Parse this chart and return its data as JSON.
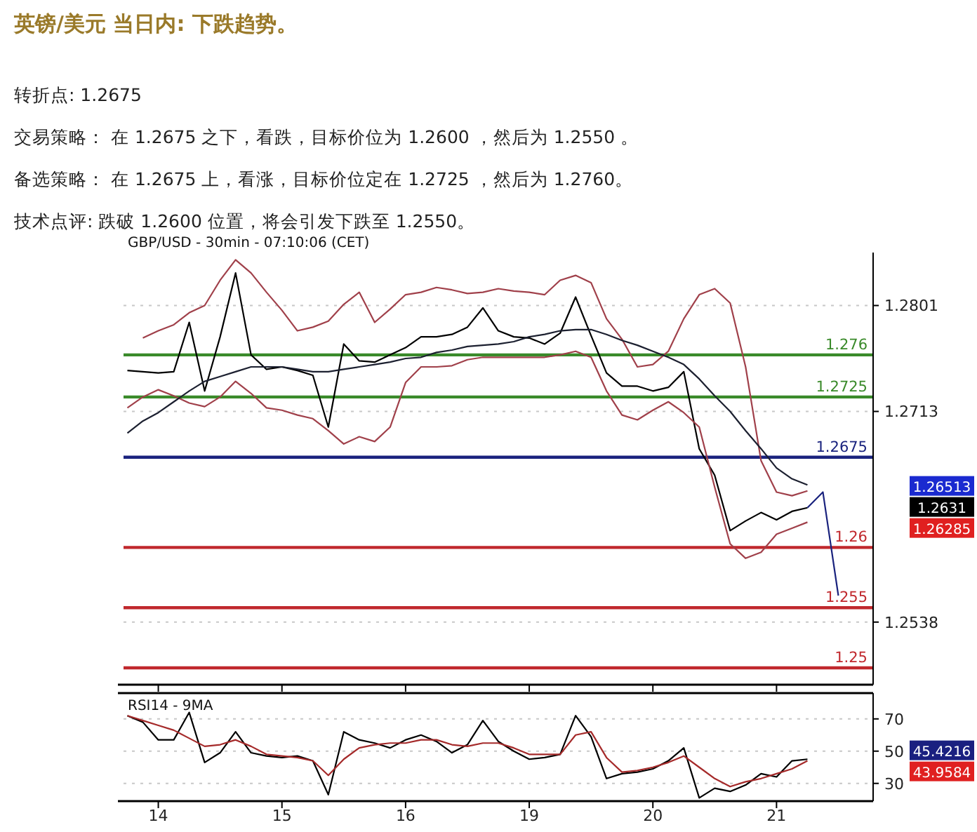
{
  "chart_data": [
    {
      "type": "line",
      "title": "英镑/美元 当日内: 下跌趋势。",
      "subtitle": "GBP/USD - 30min - 07:10:06 (CET)",
      "annotations": [
        "转折点: 1.2675",
        "交易策略： 在 1.2675 之下，看跌，目标价位为 1.2600 ，然后为 1.2550 。",
        "备选策略： 在 1.2675 上，看涨，目标价位定在 1.2725 ，然后为 1.2760。",
        "技术点评: 跌破 1.2600 位置，将会引发下跌至 1.2550。",
        "1.26513",
        "1.2631",
        "1.26285"
      ],
      "categories": [
        null,
        null,
        "14",
        null,
        null,
        null,
        null,
        null,
        null,
        null,
        "15",
        null,
        null,
        null,
        null,
        null,
        null,
        null,
        "16",
        null,
        null,
        null,
        null,
        null,
        null,
        null,
        "19",
        null,
        null,
        null,
        null,
        null,
        null,
        null,
        "20",
        null,
        null,
        null,
        null,
        null,
        null,
        null,
        "21",
        null,
        null,
        null,
        null,
        null,
        null
      ],
      "ylim": [
        1.2486,
        1.2845
      ],
      "yticks": [
        1.2801,
        1.2713,
        1.2538
      ],
      "grid": "y",
      "tick_labels": "y",
      "ref_lines": [
        {
          "axis": "y",
          "value": 1.276,
          "label": "1.276",
          "color": "#3a8a2a"
        },
        {
          "axis": "y",
          "value": 1.2725,
          "label": "1.2725",
          "color": "#3a8a2a"
        },
        {
          "axis": "y",
          "value": 1.2675,
          "label": "1.2675",
          "color": "#1a237e"
        },
        {
          "axis": "y",
          "value": 1.26,
          "label": "1.26",
          "color": "#c0282d"
        },
        {
          "axis": "y",
          "value": 1.255,
          "label": "1.255",
          "color": "#c0282d"
        },
        {
          "axis": "y",
          "value": 1.25,
          "label": "1.25",
          "color": "#c0282d"
        }
      ],
      "series": [
        {
          "color": "#000000",
          "values": [
            1.2747,
            1.2746,
            1.2745,
            1.2746,
            1.2787,
            1.273,
            1.2775,
            1.2828,
            1.276,
            1.2748,
            1.275,
            1.2747,
            1.2743,
            1.27,
            1.2769,
            1.2755,
            1.2754,
            1.276,
            1.2766,
            1.2775,
            1.2775,
            1.2777,
            1.2783,
            1.2799,
            1.278,
            1.2775,
            1.2774,
            1.2769,
            1.2778,
            1.2808,
            1.2776,
            1.2745,
            1.2734,
            1.2734,
            1.273,
            1.2733,
            1.2746,
            1.2682,
            1.266,
            1.2614,
            1.2622,
            1.2629,
            1.2623,
            1.263,
            1.2633,
            null,
            null,
            null,
            null
          ]
        },
        {
          "color": "#a0404a",
          "values": [
            null,
            1.2774,
            1.278,
            1.2785,
            1.2795,
            1.2801,
            1.2822,
            1.2839,
            1.2828,
            1.2812,
            1.2797,
            1.278,
            1.2783,
            1.2788,
            1.2802,
            1.2812,
            1.2787,
            1.2798,
            1.281,
            1.2812,
            1.2816,
            1.2814,
            1.2811,
            1.2812,
            1.2815,
            1.2813,
            1.2812,
            1.281,
            1.2822,
            1.2826,
            1.282,
            1.279,
            1.2773,
            1.275,
            1.2752,
            1.2763,
            1.279,
            1.281,
            1.2815,
            1.2803,
            1.275,
            1.2672,
            1.2646,
            1.2643,
            1.2647,
            null,
            null,
            null,
            null
          ]
        },
        {
          "color": "#a0404a",
          "values": [
            1.2716,
            1.2725,
            1.2731,
            1.2726,
            1.272,
            1.2717,
            1.2725,
            1.2738,
            1.2728,
            1.2716,
            1.2714,
            1.271,
            1.2707,
            1.2697,
            1.2686,
            1.2692,
            1.2688,
            1.27,
            1.2737,
            1.275,
            1.275,
            1.2751,
            1.2756,
            1.2758,
            1.2758,
            1.2758,
            1.2758,
            1.2758,
            1.276,
            1.2763,
            1.2758,
            1.273,
            1.271,
            1.2706,
            1.2714,
            1.2721,
            1.2712,
            1.27,
            1.265,
            1.2603,
            1.2591,
            1.2596,
            1.2611,
            1.2616,
            1.2621,
            null,
            null,
            null,
            null
          ]
        },
        {
          "color": "#1c2030",
          "values": [
            1.2695,
            1.2705,
            1.2712,
            1.2721,
            1.273,
            1.2738,
            1.2742,
            1.2746,
            1.275,
            1.275,
            1.275,
            1.2748,
            1.2746,
            1.2746,
            1.2748,
            1.275,
            1.2752,
            1.2754,
            1.2757,
            1.2758,
            1.2762,
            1.2764,
            1.2767,
            1.2768,
            1.2769,
            1.2771,
            1.2775,
            1.2777,
            1.278,
            1.2781,
            1.2781,
            1.2777,
            1.2772,
            1.2768,
            1.2763,
            1.2758,
            1.2752,
            1.274,
            1.2726,
            1.2713,
            1.2697,
            1.2682,
            1.2666,
            1.2657,
            1.2652,
            null,
            null,
            null,
            null
          ]
        },
        {
          "color": "#1a237e",
          "values": [
            null,
            null,
            null,
            null,
            null,
            null,
            null,
            null,
            null,
            null,
            null,
            null,
            null,
            null,
            null,
            null,
            null,
            null,
            null,
            null,
            null,
            null,
            null,
            null,
            null,
            null,
            null,
            null,
            null,
            null,
            null,
            null,
            null,
            null,
            null,
            null,
            null,
            null,
            null,
            null,
            null,
            null,
            null,
            null,
            1.2633,
            1.2646,
            1.256,
            null,
            null
          ]
        }
      ]
    },
    {
      "type": "line",
      "subtitle": "RSI14 - 9MA",
      "annotations": [
        "45.4216",
        "43.9584"
      ],
      "categories": [
        null,
        null,
        "14",
        null,
        null,
        null,
        null,
        null,
        null,
        null,
        "15",
        null,
        null,
        null,
        null,
        null,
        null,
        null,
        "16",
        null,
        null,
        null,
        null,
        null,
        null,
        null,
        "19",
        null,
        null,
        null,
        null,
        null,
        null,
        null,
        "20",
        null,
        null,
        null,
        null,
        null,
        null,
        null,
        "21",
        null,
        null,
        null,
        null,
        null,
        null
      ],
      "ylim": [
        19,
        86
      ],
      "yticks": [
        70,
        50,
        30
      ],
      "grid": "y",
      "series": [
        {
          "color": "#000000",
          "values": [
            72,
            68,
            57,
            57,
            74,
            43,
            49,
            62,
            49,
            47,
            46,
            47,
            44,
            23,
            62,
            57,
            55,
            52,
            57,
            60,
            56,
            49,
            54,
            69,
            56,
            50,
            45,
            46,
            48,
            72,
            59,
            33,
            36,
            37,
            39,
            44,
            52,
            21,
            27,
            25,
            29,
            36,
            34,
            44,
            45,
            null,
            null,
            null,
            null
          ]
        },
        {
          "color": "#a52a2a",
          "values": [
            72,
            69,
            66,
            63,
            58,
            53,
            54,
            57,
            53,
            48,
            47,
            46,
            44,
            35,
            45,
            52,
            54,
            55,
            55,
            57,
            57,
            54,
            53,
            55,
            55,
            52,
            48,
            48,
            48,
            60,
            62,
            46,
            37,
            38,
            40,
            43,
            47,
            40,
            33,
            28,
            31,
            33,
            36,
            39,
            44,
            null,
            null,
            null,
            null
          ]
        }
      ]
    }
  ]
}
